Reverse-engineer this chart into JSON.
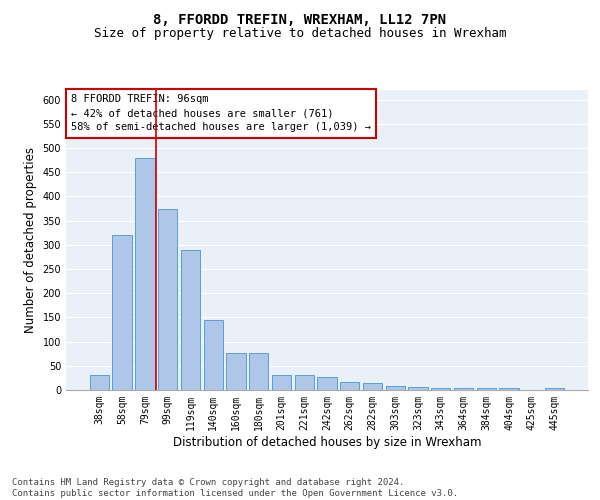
{
  "title": "8, FFORDD TREFIN, WREXHAM, LL12 7PN",
  "subtitle": "Size of property relative to detached houses in Wrexham",
  "xlabel": "Distribution of detached houses by size in Wrexham",
  "ylabel": "Number of detached properties",
  "categories": [
    "38sqm",
    "58sqm",
    "79sqm",
    "99sqm",
    "119sqm",
    "140sqm",
    "160sqm",
    "180sqm",
    "201sqm",
    "221sqm",
    "242sqm",
    "262sqm",
    "282sqm",
    "303sqm",
    "323sqm",
    "343sqm",
    "364sqm",
    "384sqm",
    "404sqm",
    "425sqm",
    "445sqm"
  ],
  "values": [
    32,
    320,
    480,
    375,
    290,
    145,
    76,
    76,
    32,
    30,
    27,
    16,
    15,
    8,
    7,
    5,
    5,
    5,
    5,
    1,
    5
  ],
  "bar_color": "#aec6e8",
  "bar_edge_color": "#5a9fd4",
  "annotation_line1": "8 FFORDD TREFIN: 96sqm",
  "annotation_line2": "← 42% of detached houses are smaller (761)",
  "annotation_line3": "58% of semi-detached houses are larger (1,039) →",
  "annotation_box_facecolor": "#ffffff",
  "annotation_box_edgecolor": "#cc0000",
  "vline_color": "#cc0000",
  "vline_x_index": 2,
  "ylim": [
    0,
    620
  ],
  "yticks": [
    0,
    50,
    100,
    150,
    200,
    250,
    300,
    350,
    400,
    450,
    500,
    550,
    600
  ],
  "bg_color": "#eaf0f8",
  "footer_line1": "Contains HM Land Registry data © Crown copyright and database right 2024.",
  "footer_line2": "Contains public sector information licensed under the Open Government Licence v3.0.",
  "title_fontsize": 10,
  "subtitle_fontsize": 9,
  "xlabel_fontsize": 8.5,
  "ylabel_fontsize": 8.5,
  "tick_fontsize": 7,
  "annotation_fontsize": 7.5,
  "footer_fontsize": 6.5
}
